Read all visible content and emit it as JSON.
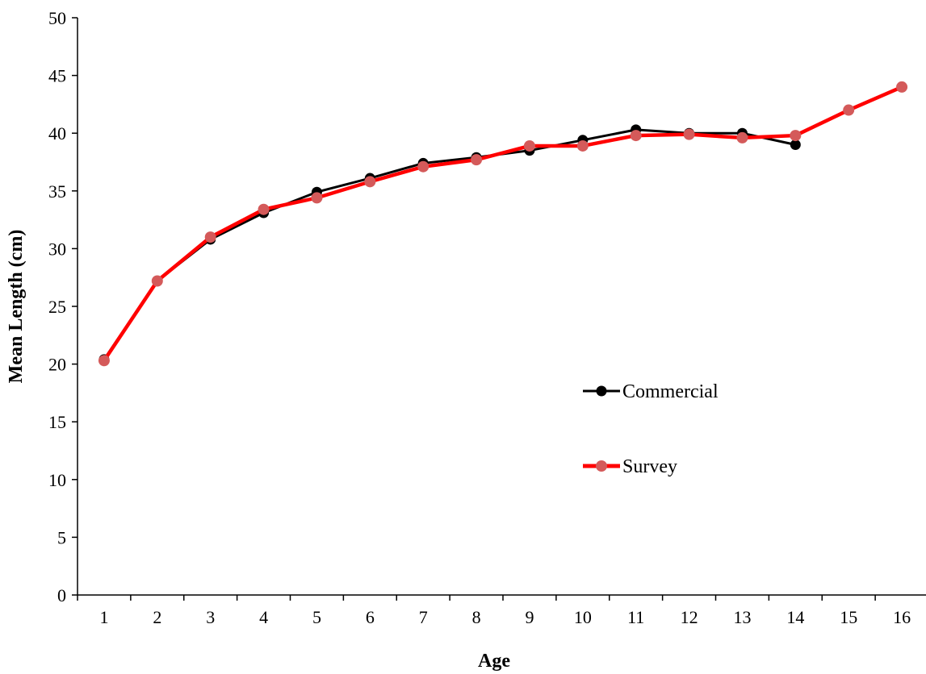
{
  "chart_data": {
    "type": "line",
    "xlabel": "Age",
    "ylabel": "Mean Length (cm)",
    "ylim": [
      0,
      50
    ],
    "ytick_step": 5,
    "x": [
      1,
      2,
      3,
      4,
      5,
      6,
      7,
      8,
      9,
      10,
      11,
      12,
      13,
      14,
      15,
      16
    ],
    "grid": false,
    "legend_position": "center-right",
    "series": [
      {
        "name": "Commercial",
        "color": "#000000",
        "marker_color": "#000000",
        "x": [
          1,
          2,
          3,
          4,
          5,
          6,
          7,
          8,
          9,
          10,
          11,
          12,
          13,
          14
        ],
        "values": [
          20.4,
          27.2,
          30.8,
          33.1,
          34.9,
          36.1,
          37.4,
          37.9,
          38.5,
          39.4,
          40.3,
          40.0,
          40.0,
          39.0
        ]
      },
      {
        "name": "Survey",
        "color": "#ff0000",
        "marker_color": "#d45a5a",
        "x": [
          1,
          2,
          3,
          4,
          5,
          6,
          7,
          8,
          9,
          10,
          11,
          12,
          13,
          14,
          15,
          16
        ],
        "values": [
          20.3,
          27.2,
          31.0,
          33.4,
          34.4,
          35.8,
          37.1,
          37.7,
          38.9,
          38.9,
          39.8,
          39.9,
          39.6,
          39.8,
          42.0,
          44.0
        ]
      }
    ]
  }
}
